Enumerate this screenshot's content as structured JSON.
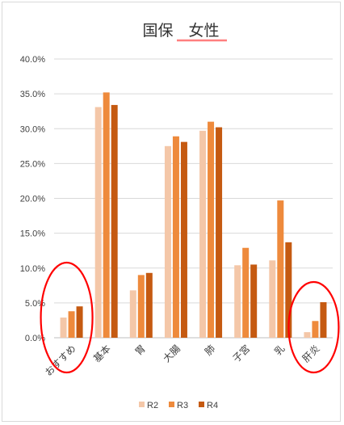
{
  "chart_data": {
    "type": "bar",
    "title": "国保　女性",
    "xlabel": "",
    "ylabel": "",
    "categories": [
      "おすすめ",
      "基本",
      "胃",
      "大腸",
      "肺",
      "子宮",
      "乳",
      "肝炎"
    ],
    "series": [
      {
        "name": "R2",
        "color": "#f4c7a8",
        "values": [
          2.9,
          33.1,
          6.8,
          27.5,
          29.7,
          10.4,
          11.1,
          0.8
        ]
      },
      {
        "name": "R3",
        "color": "#ee8a3c",
        "values": [
          3.8,
          35.2,
          9.0,
          28.9,
          31.0,
          12.9,
          19.7,
          2.4
        ]
      },
      {
        "name": "R4",
        "color": "#c55a11",
        "values": [
          4.5,
          33.4,
          9.3,
          28.1,
          30.2,
          10.5,
          13.7,
          5.1
        ]
      }
    ],
    "ylim": [
      0,
      40
    ],
    "yticks": [
      "0.0%",
      "5.0%",
      "10.0%",
      "15.0%",
      "20.0%",
      "25.0%",
      "30.0%",
      "35.0%",
      "40.0%"
    ],
    "grid": true,
    "legend": "bottom",
    "annotations": {
      "title_underline_color": "#ff7f7f",
      "circle_color": "#ff0000",
      "circled_categories": [
        "おすすめ",
        "肝炎"
      ]
    }
  }
}
